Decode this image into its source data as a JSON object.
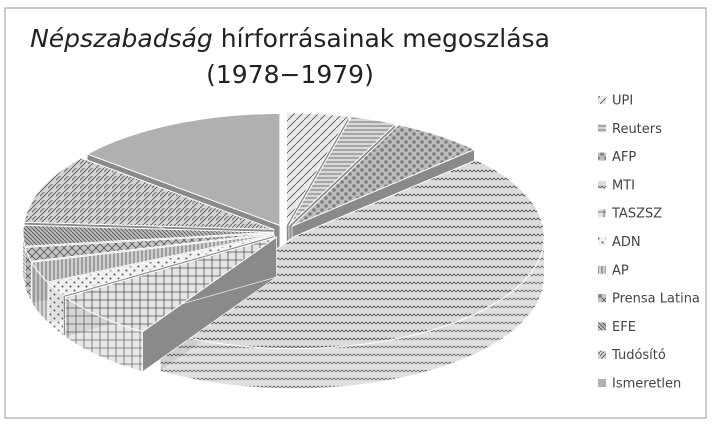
{
  "chart_data": {
    "type": "pie3d",
    "title": [
      "Népszabadság",
      "hírforrásainak megoszlása",
      "(1978−1979)"
    ],
    "categories": [
      "UPI",
      "Reuters",
      "AFP",
      "MTI",
      "TASZSZ",
      "ADN",
      "AP",
      "Prensa Latina",
      "EFE",
      "Tudósító",
      "Ismeretlen"
    ],
    "values": [
      4,
      3,
      6,
      46,
      7,
      2,
      3,
      2,
      3,
      10,
      14
    ],
    "colors": [
      "#e8e8e8",
      "#d8d8d8",
      "#bdbdbd",
      "#dcdcdc",
      "#e4e4e4",
      "#f2f2f2",
      "#cfcfcf",
      "#c4c4c4",
      "#b8b8b8",
      "#d2d2d2",
      "#b0b0b0"
    ],
    "legend": "right"
  }
}
